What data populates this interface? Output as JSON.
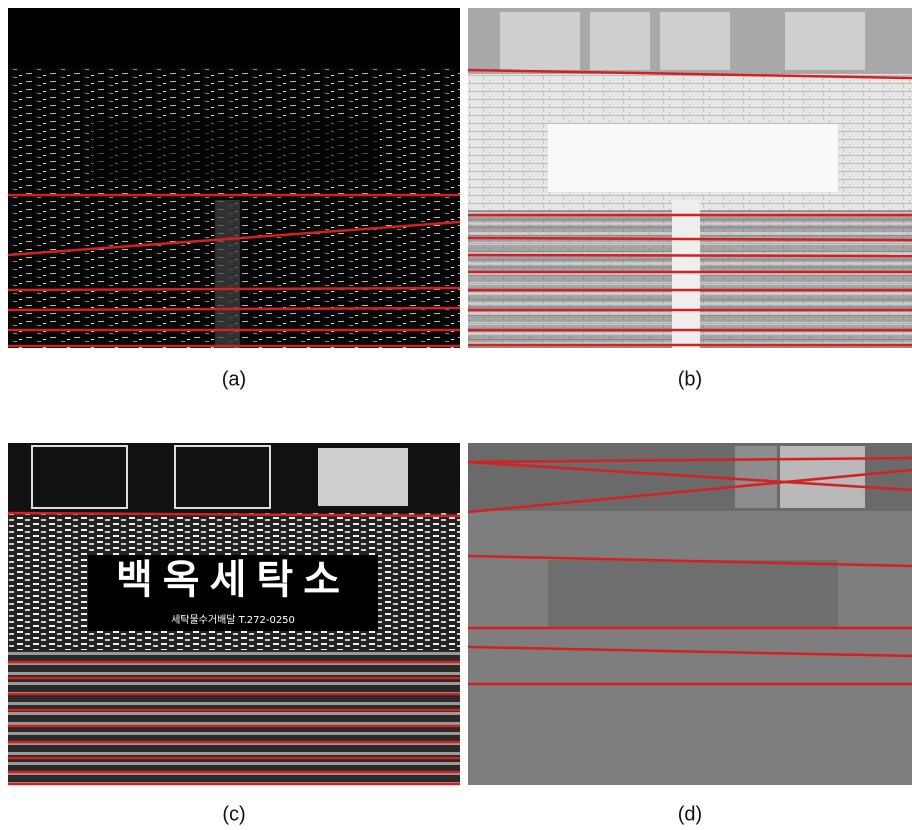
{
  "figure": {
    "panels": [
      {
        "caption": "(a)"
      },
      {
        "caption": "(b)"
      },
      {
        "caption": "(c)",
        "sign_title": "백옥세탁소",
        "sign_subtitle": "세탁물수거배달 T.272-0250"
      },
      {
        "caption": "(d)"
      }
    ]
  }
}
